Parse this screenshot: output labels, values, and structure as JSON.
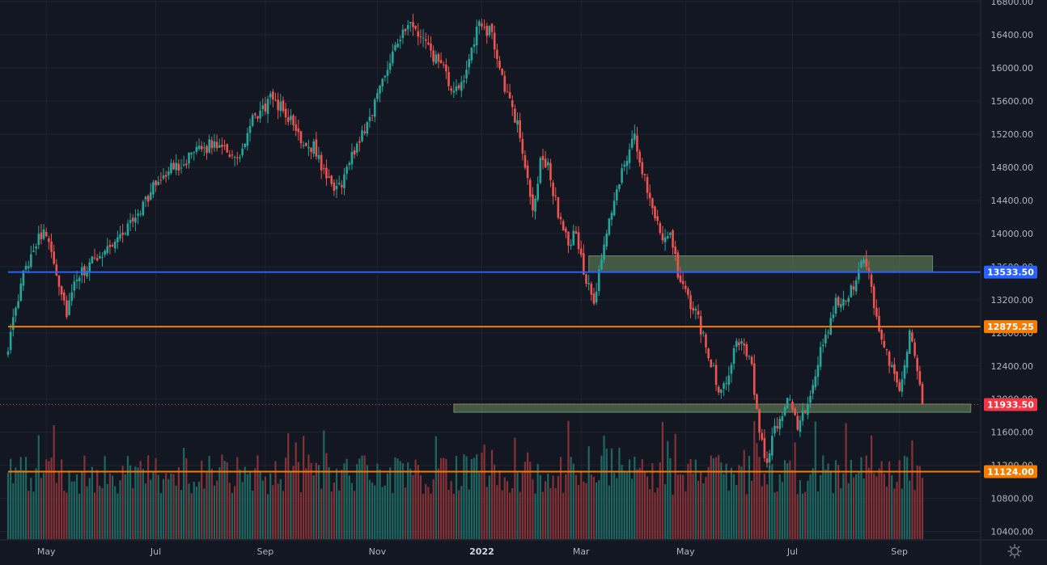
{
  "chart_data": {
    "type": "candlestick",
    "title": "",
    "y_axis": {
      "ticks": [
        10400,
        10800,
        11200,
        11600,
        12000,
        12400,
        12800,
        13200,
        13600,
        14000,
        14400,
        14800,
        15200,
        15600,
        16000,
        16400,
        16800
      ],
      "tick_labels": [
        "10400.00",
        "10800.00",
        "11200.00",
        "11600.00",
        "12000.00",
        "12400.00",
        "12800.00",
        "13200.00",
        "13600.00",
        "14000.00",
        "14400.00",
        "14800.00",
        "15200.00",
        "15600.00",
        "16000.00",
        "16400.00",
        "16800.00"
      ],
      "range": [
        10250,
        16820
      ]
    },
    "x_axis": {
      "ticks": [
        {
          "label": "May",
          "index": 15,
          "bold": false
        },
        {
          "label": "Jul",
          "index": 58,
          "bold": false
        },
        {
          "label": "Sep",
          "index": 101,
          "bold": false
        },
        {
          "label": "Nov",
          "index": 145,
          "bold": false
        },
        {
          "label": "2022",
          "index": 186,
          "bold": true
        },
        {
          "label": "Mar",
          "index": 225,
          "bold": false
        },
        {
          "label": "May",
          "index": 266,
          "bold": false
        },
        {
          "label": "Jul",
          "index": 308,
          "bold": false
        },
        {
          "label": "Sep",
          "index": 350,
          "bold": false
        }
      ]
    },
    "price_anchors": [
      [
        0,
        12650
      ],
      [
        3,
        13050
      ],
      [
        6,
        13500
      ],
      [
        12,
        14000
      ],
      [
        16,
        13950
      ],
      [
        20,
        13400
      ],
      [
        23,
        13050
      ],
      [
        27,
        13450
      ],
      [
        30,
        13550
      ],
      [
        36,
        13750
      ],
      [
        45,
        14000
      ],
      [
        52,
        14300
      ],
      [
        60,
        14700
      ],
      [
        68,
        14850
      ],
      [
        78,
        15050
      ],
      [
        84,
        15100
      ],
      [
        90,
        14850
      ],
      [
        96,
        15350
      ],
      [
        104,
        15650
      ],
      [
        110,
        15400
      ],
      [
        116,
        15100
      ],
      [
        120,
        15050
      ],
      [
        126,
        14600
      ],
      [
        130,
        14550
      ],
      [
        134,
        14850
      ],
      [
        138,
        15150
      ],
      [
        142,
        15400
      ],
      [
        148,
        15950
      ],
      [
        152,
        16300
      ],
      [
        158,
        16500
      ],
      [
        163,
        16350
      ],
      [
        166,
        16150
      ],
      [
        170,
        16050
      ],
      [
        175,
        15650
      ],
      [
        181,
        16050
      ],
      [
        185,
        16550
      ],
      [
        190,
        16400
      ],
      [
        194,
        15900
      ],
      [
        196,
        15650
      ],
      [
        200,
        15300
      ],
      [
        204,
        14700
      ],
      [
        206,
        14200
      ],
      [
        209,
        14900
      ],
      [
        212,
        14800
      ],
      [
        216,
        14250
      ],
      [
        220,
        13850
      ],
      [
        223,
        14050
      ],
      [
        226,
        13500
      ],
      [
        230,
        13150
      ],
      [
        235,
        14000
      ],
      [
        239,
        14550
      ],
      [
        243,
        14950
      ],
      [
        246,
        15150
      ],
      [
        249,
        14750
      ],
      [
        253,
        14350
      ],
      [
        257,
        13950
      ],
      [
        260,
        14050
      ],
      [
        263,
        13500
      ],
      [
        266,
        13250
      ],
      [
        270,
        13050
      ],
      [
        273,
        12750
      ],
      [
        277,
        12350
      ],
      [
        280,
        12050
      ],
      [
        283,
        12350
      ],
      [
        286,
        12750
      ],
      [
        289,
        12650
      ],
      [
        292,
        12350
      ],
      [
        295,
        11550
      ],
      [
        298,
        11250
      ],
      [
        301,
        11600
      ],
      [
        304,
        11850
      ],
      [
        307,
        12050
      ],
      [
        310,
        11650
      ],
      [
        313,
        11850
      ],
      [
        316,
        12150
      ],
      [
        319,
        12550
      ],
      [
        322,
        12850
      ],
      [
        325,
        13150
      ],
      [
        329,
        13250
      ],
      [
        332,
        13400
      ],
      [
        335,
        13700
      ],
      [
        338,
        13450
      ],
      [
        341,
        12950
      ],
      [
        344,
        12700
      ],
      [
        347,
        12350
      ],
      [
        350,
        12050
      ],
      [
        354,
        12800
      ],
      [
        357,
        12300
      ],
      [
        359,
        11933.5
      ]
    ],
    "volume_pattern": "daily volume bars in lower pane, green on up days and red on down days, no volume axis labels",
    "horizontal_lines": [
      {
        "price": 13533.5,
        "label": "13533.50",
        "color": "#2962ff"
      },
      {
        "price": 12875.25,
        "label": "12875.25",
        "color": "#f57c00"
      },
      {
        "price": 11124.0,
        "label": "11124.00",
        "color": "#f57c00"
      }
    ],
    "last_price": {
      "price": 11933.5,
      "label": "11933.50",
      "color": "#f23645"
    },
    "zones": [
      {
        "price_low": 13530,
        "price_high": 13730,
        "index_start": 228,
        "index_end": 363,
        "color": "#6b8f5e"
      },
      {
        "price_low": 11840,
        "price_high": 11940,
        "index_start": 175,
        "index_end": 378,
        "color": "#6b8f5e"
      }
    ],
    "grid": true,
    "colors": {
      "up": "#26a69a",
      "down": "#ef5350",
      "background": "#131722",
      "grid": "#1f2433"
    }
  },
  "ui": {
    "settings_icon": "gear-icon"
  }
}
